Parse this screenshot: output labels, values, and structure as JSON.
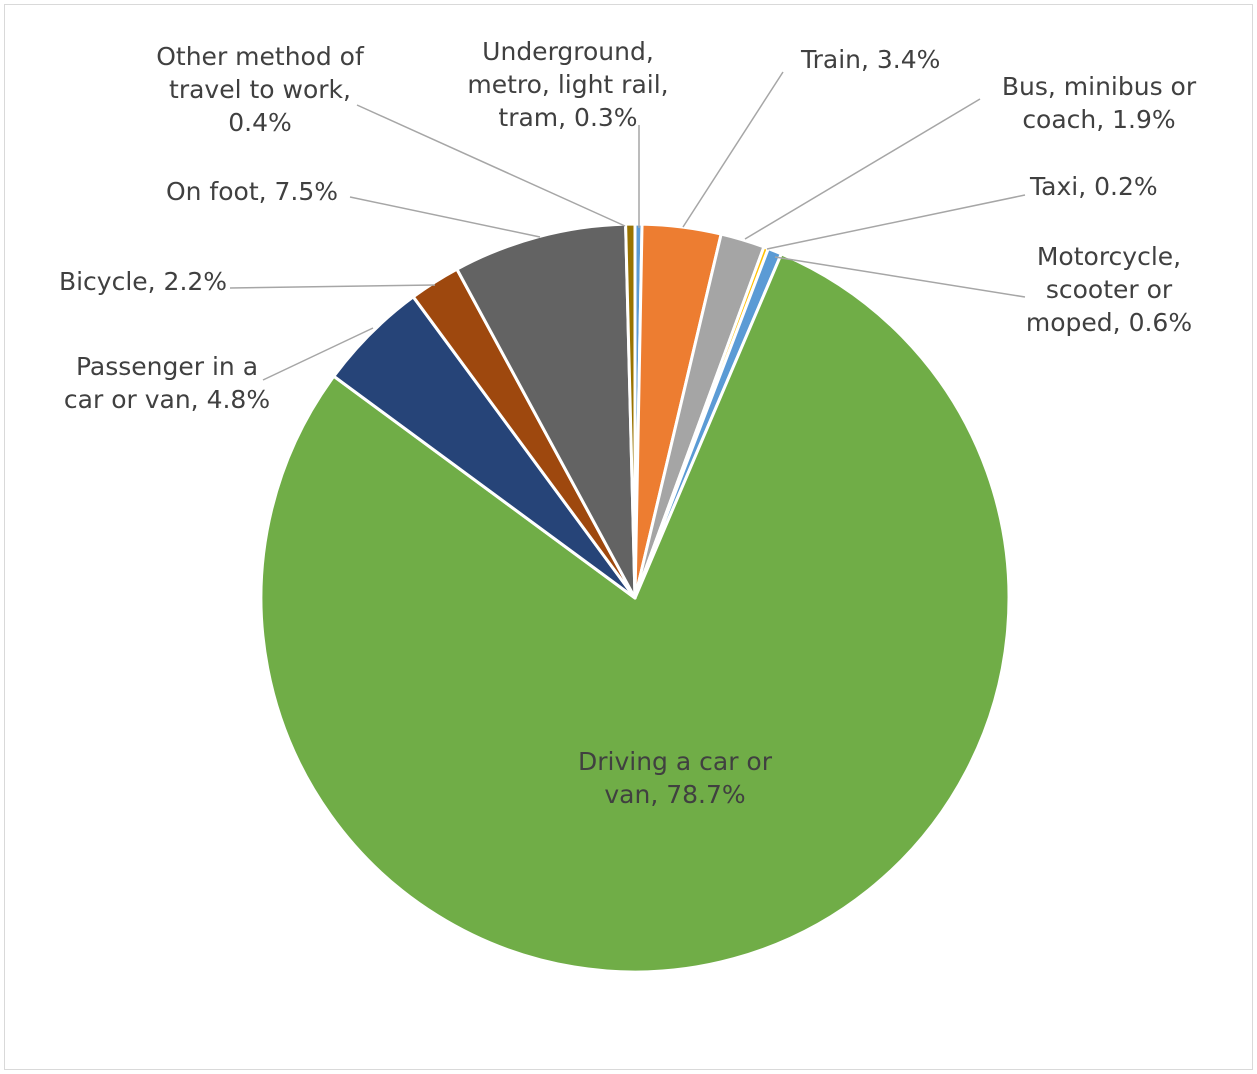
{
  "chart_data": {
    "type": "pie",
    "title": "",
    "slices": [
      {
        "name": "Underground, metro, light rail, tram",
        "value": 0.3,
        "label_lines": [
          "Underground,",
          "metro, light rail,",
          "tram, 0.3%"
        ],
        "color": "#5b9bd5"
      },
      {
        "name": "Train",
        "value": 3.4,
        "label_lines": [
          "Train, 3.4%"
        ],
        "color": "#ed7d31"
      },
      {
        "name": "Bus, minibus or coach",
        "value": 1.9,
        "label_lines": [
          "Bus, minibus or",
          "coach, 1.9%"
        ],
        "color": "#a5a5a5"
      },
      {
        "name": "Taxi",
        "value": 0.2,
        "label_lines": [
          "Taxi, 0.2%"
        ],
        "color": "#ffc000"
      },
      {
        "name": "Motorcycle, scooter or moped",
        "value": 0.6,
        "label_lines": [
          "Motorcycle,",
          "scooter or",
          "moped, 0.6%"
        ],
        "color": "#5b9bd5"
      },
      {
        "name": "Driving a car or van",
        "value": 78.7,
        "label_lines": [
          "Driving a car or",
          "van, 78.7%"
        ],
        "color": "#70ad47"
      },
      {
        "name": "Passenger in a car or van",
        "value": 4.8,
        "label_lines": [
          "Passenger in a",
          "car or van, 4.8%"
        ],
        "color": "#264478"
      },
      {
        "name": "Bicycle",
        "value": 2.2,
        "label_lines": [
          "Bicycle, 2.2%"
        ],
        "color": "#9e480e"
      },
      {
        "name": "On foot",
        "value": 7.5,
        "label_lines": [
          "On foot, 7.5%"
        ],
        "color": "#636363"
      },
      {
        "name": "Other method of travel to work",
        "value": 0.4,
        "label_lines": [
          "Other method of",
          "travel to work,",
          "0.4%"
        ],
        "color": "#997300"
      }
    ],
    "legend": "none",
    "data_labels": "outside with leader lines"
  }
}
